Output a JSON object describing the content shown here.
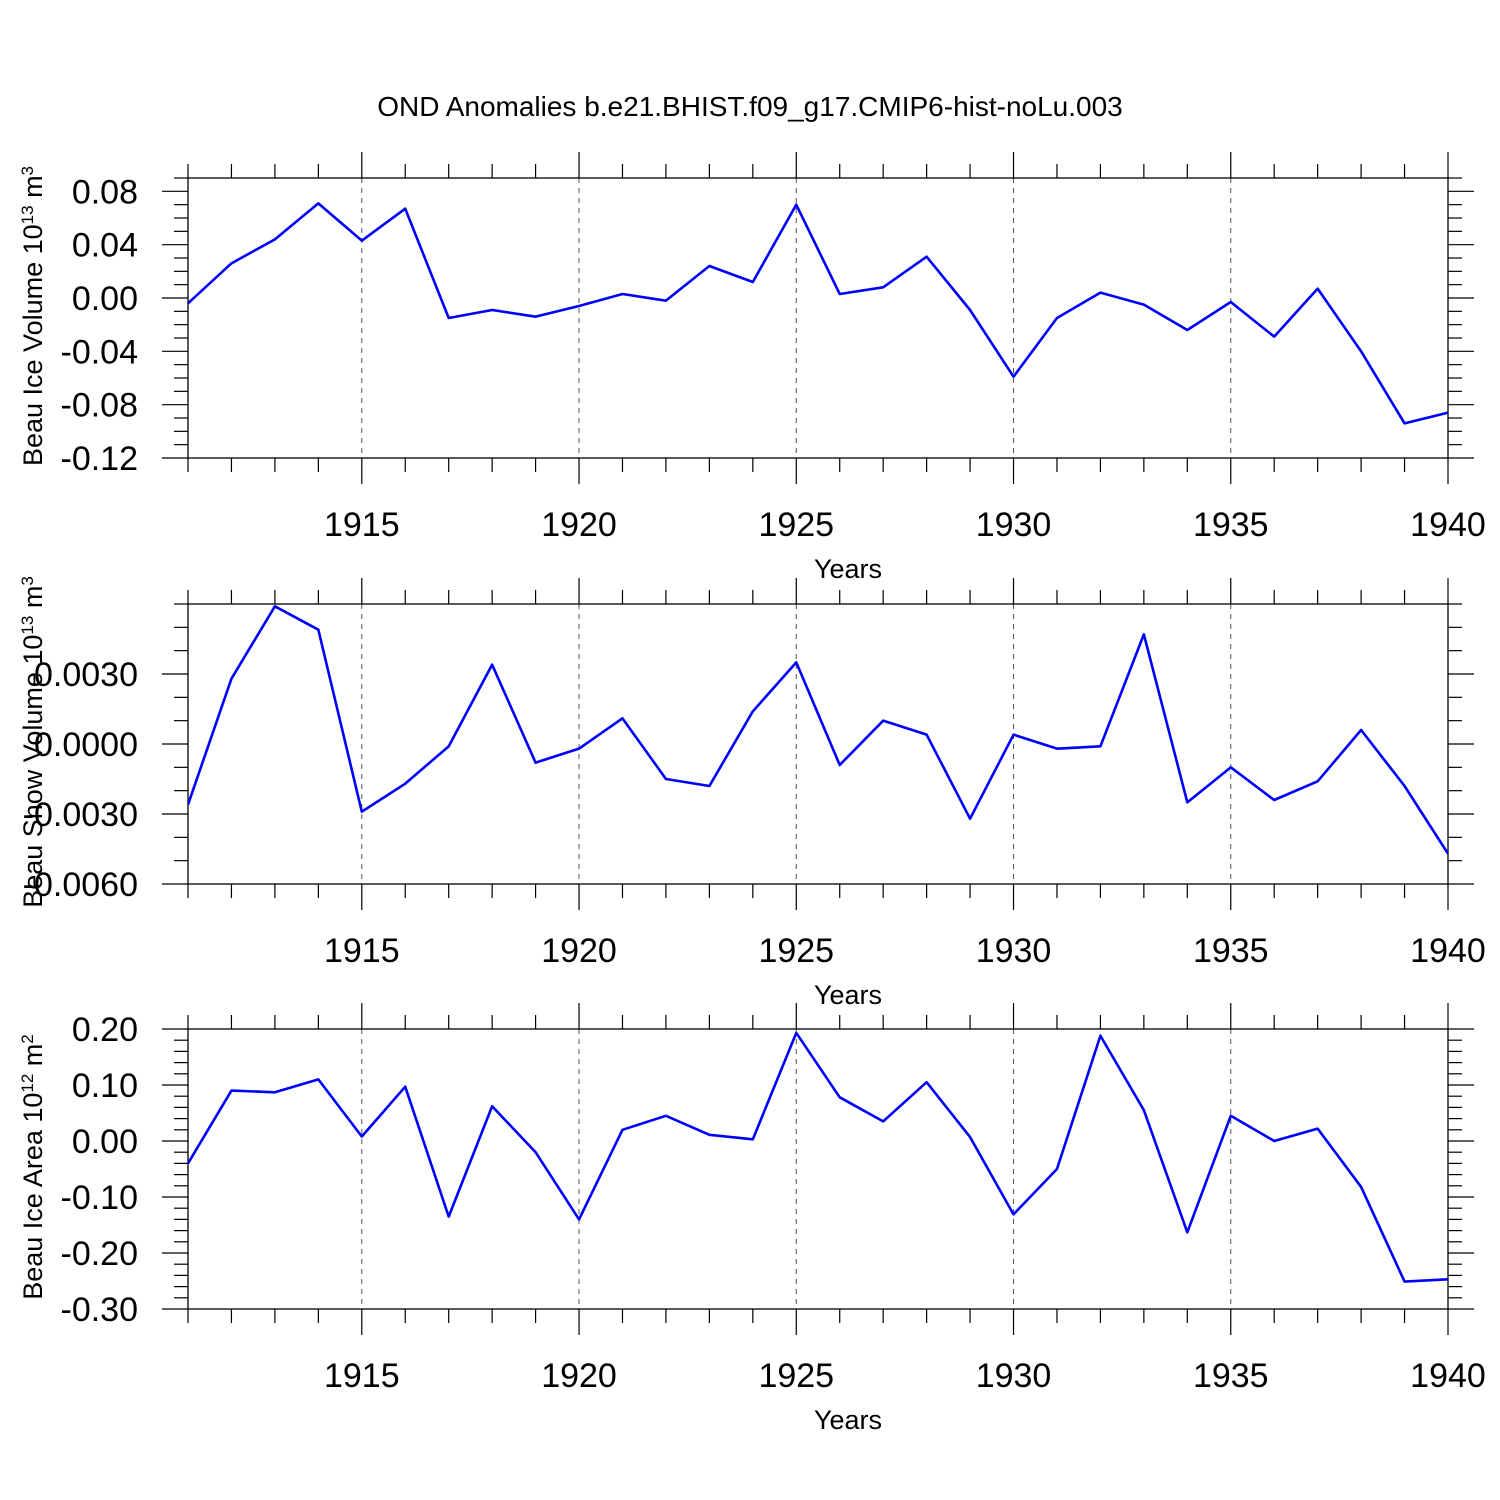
{
  "figure": {
    "title": "OND Anomalies b.e21.BHIST.f09_g17.CMIP6-hist-noLu.003"
  },
  "colors": {
    "series": "#0000ff",
    "axis": "#000000",
    "grid": "#555555"
  },
  "chart_data": [
    {
      "type": "line",
      "ylabel_main": "Beau Ice Volume 10",
      "ylabel_sup1": "13",
      "ylabel_mid": " m",
      "ylabel_sup2": "3",
      "xlabel": "Years",
      "xlim": [
        1911,
        1940
      ],
      "ylim": [
        -0.12,
        0.09
      ],
      "yticks": [
        0.08,
        0.04,
        0.0,
        -0.04,
        -0.08,
        -0.12
      ],
      "ytick_labels": [
        "0.08",
        "0.04",
        "0.00",
        "-0.04",
        "-0.08",
        "-0.12"
      ],
      "yminor_step": 0.01,
      "xticks": [
        1915,
        1920,
        1925,
        1930,
        1935,
        1940
      ],
      "xtick_labels": [
        "1915",
        "1920",
        "1925",
        "1930",
        "1935",
        "1940"
      ],
      "grid_x": true,
      "series": [
        {
          "name": "Beau Ice Volume",
          "x": [
            1911,
            1912,
            1913,
            1914,
            1915,
            1916,
            1917,
            1918,
            1919,
            1920,
            1921,
            1922,
            1923,
            1924,
            1925,
            1926,
            1927,
            1928,
            1929,
            1930,
            1931,
            1932,
            1933,
            1934,
            1935,
            1936,
            1937,
            1938,
            1939,
            1940
          ],
          "values": [
            -0.004,
            0.026,
            0.044,
            0.071,
            0.043,
            0.067,
            -0.015,
            -0.009,
            -0.014,
            -0.006,
            0.003,
            -0.002,
            0.024,
            0.012,
            0.07,
            0.003,
            0.008,
            0.031,
            -0.009,
            -0.059,
            -0.015,
            0.004,
            -0.005,
            -0.024,
            -0.003,
            -0.029,
            0.007,
            -0.04,
            -0.094,
            -0.086
          ]
        }
      ]
    },
    {
      "type": "line",
      "ylabel_main": "Beau Snow Volume 10",
      "ylabel_sup1": "13",
      "ylabel_mid": " m",
      "ylabel_sup2": "3",
      "xlabel": "Years",
      "xlim": [
        1911,
        1940
      ],
      "ylim": [
        -0.006,
        0.006
      ],
      "yticks": [
        0.003,
        0.0,
        -0.003,
        -0.006
      ],
      "ytick_labels": [
        "0.0030",
        "0.0000",
        "-0.0030",
        "-0.0060"
      ],
      "yminor_step": 0.001,
      "xticks": [
        1915,
        1920,
        1925,
        1930,
        1935,
        1940
      ],
      "xtick_labels": [
        "1915",
        "1920",
        "1925",
        "1930",
        "1935",
        "1940"
      ],
      "grid_x": true,
      "series": [
        {
          "name": "Beau Snow Volume",
          "x": [
            1911,
            1912,
            1913,
            1914,
            1915,
            1916,
            1917,
            1918,
            1919,
            1920,
            1921,
            1922,
            1923,
            1924,
            1925,
            1926,
            1927,
            1928,
            1929,
            1930,
            1931,
            1932,
            1933,
            1934,
            1935,
            1936,
            1937,
            1938,
            1939,
            1940
          ],
          "values": [
            -0.0026,
            0.0028,
            0.0059,
            0.0049,
            -0.0029,
            -0.0017,
            -0.0001,
            0.0034,
            -0.0008,
            -0.0002,
            0.0011,
            -0.0015,
            -0.0018,
            0.0014,
            0.0035,
            -0.0009,
            0.001,
            0.0004,
            -0.0032,
            0.0004,
            -0.0002,
            -0.0001,
            0.0047,
            -0.0025,
            -0.001,
            -0.0024,
            -0.0016,
            0.0006,
            -0.0018,
            -0.0047
          ]
        }
      ]
    },
    {
      "type": "line",
      "ylabel_main": "Beau Ice Area 10",
      "ylabel_sup1": "12",
      "ylabel_mid": " m",
      "ylabel_sup2": "2",
      "xlabel": "Years",
      "xlim": [
        1911,
        1940
      ],
      "ylim": [
        -0.3,
        0.2
      ],
      "yticks": [
        0.2,
        0.1,
        0.0,
        -0.1,
        -0.2,
        -0.3
      ],
      "ytick_labels": [
        "0.20",
        "0.10",
        "0.00",
        "-0.10",
        "-0.20",
        "-0.30"
      ],
      "yminor_step": 0.02,
      "xticks": [
        1915,
        1920,
        1925,
        1930,
        1935,
        1940
      ],
      "xtick_labels": [
        "1915",
        "1920",
        "1925",
        "1930",
        "1935",
        "1940"
      ],
      "grid_x": true,
      "series": [
        {
          "name": "Beau Ice Area",
          "x": [
            1911,
            1912,
            1913,
            1914,
            1915,
            1916,
            1917,
            1918,
            1919,
            1920,
            1921,
            1922,
            1923,
            1924,
            1925,
            1926,
            1927,
            1928,
            1929,
            1930,
            1931,
            1932,
            1933,
            1934,
            1935,
            1936,
            1937,
            1938,
            1939,
            1940
          ],
          "values": [
            -0.04,
            0.09,
            0.087,
            0.11,
            0.008,
            0.097,
            -0.135,
            0.062,
            -0.02,
            -0.14,
            0.02,
            0.045,
            0.011,
            0.003,
            0.193,
            0.078,
            0.035,
            0.105,
            0.007,
            -0.131,
            -0.05,
            0.188,
            0.055,
            -0.163,
            0.045,
            0.0,
            0.022,
            -0.082,
            -0.251,
            -0.247
          ]
        }
      ]
    }
  ]
}
